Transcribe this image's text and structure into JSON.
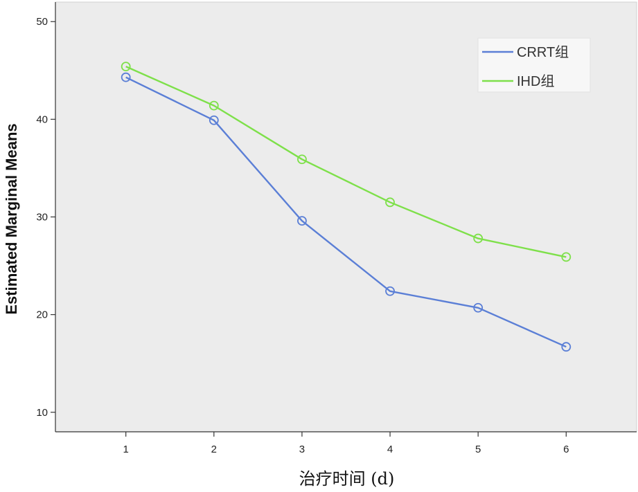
{
  "chart_data": {
    "type": "line",
    "title": "",
    "xlabel": "治疗时间 (d)",
    "ylabel": "Estimated Marginal Means",
    "x": [
      1,
      2,
      3,
      4,
      5,
      6
    ],
    "x_tick_labels": [
      "1",
      "2",
      "3",
      "4",
      "5",
      "6"
    ],
    "ylim": [
      8,
      52
    ],
    "y_ticks": [
      10,
      20,
      30,
      40,
      50
    ],
    "y_tick_labels": [
      "10",
      "20",
      "30",
      "40",
      "50"
    ],
    "grid": false,
    "legend_position": "top-right",
    "series": [
      {
        "name": "CRRT组",
        "color": "#5b7fd6",
        "values": [
          44.3,
          39.9,
          29.6,
          22.4,
          20.7,
          16.7
        ]
      },
      {
        "name": "IHD组",
        "color": "#7ee04a",
        "values": [
          45.4,
          41.4,
          35.9,
          31.5,
          27.8,
          25.9
        ]
      }
    ]
  },
  "colors": {
    "plot_background": "#ececec",
    "axis": "#333333"
  }
}
